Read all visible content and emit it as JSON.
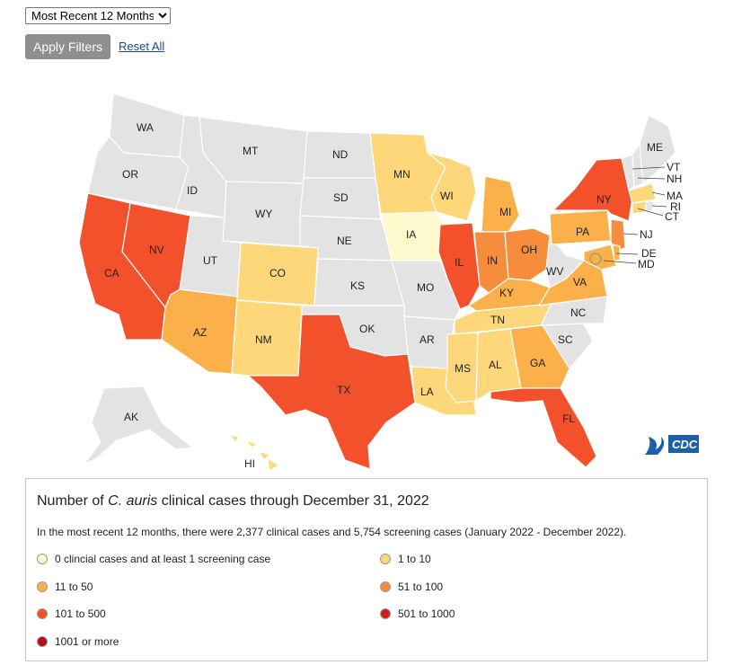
{
  "filters": {
    "period_selected": "Most Recent 12 Months",
    "apply_label": "Apply Filters",
    "reset_label": "Reset All"
  },
  "map": {
    "logo_text": "CDC",
    "colors": {
      "none": "#e3e3e3",
      "zero": "#fffacd",
      "1to10": "#fdd77a",
      "11to50": "#fbb04a",
      "51to100": "#f68c3c",
      "101to500": "#f2512c",
      "501to1000": "#d41c1c",
      "1001plus": "#b50d17"
    },
    "labels": {
      "WA": "WA",
      "OR": "OR",
      "CA": "CA",
      "NV": "NV",
      "ID": "ID",
      "MT": "MT",
      "WY": "WY",
      "UT": "UT",
      "AZ": "AZ",
      "CO": "CO",
      "NM": "NM",
      "ND": "ND",
      "SD": "SD",
      "NE": "NE",
      "KS": "KS",
      "OK": "OK",
      "TX": "TX",
      "MN": "MN",
      "IA": "IA",
      "MO": "MO",
      "AR": "AR",
      "LA": "LA",
      "WI": "WI",
      "IL": "IL",
      "MI": "MI",
      "IN": "IN",
      "OH": "OH",
      "KY": "KY",
      "TN": "TN",
      "MS": "MS",
      "AL": "AL",
      "GA": "GA",
      "FL": "FL",
      "SC": "SC",
      "NC": "NC",
      "VA": "VA",
      "WV": "WV",
      "PA": "PA",
      "NY": "NY",
      "ME": "ME",
      "VT": "VT",
      "NH": "NH",
      "MA": "MA",
      "RI": "RI",
      "CT": "CT",
      "NJ": "NJ",
      "DE": "DE",
      "MD": "MD",
      "AK": "AK",
      "HI": "HI"
    }
  },
  "legend": {
    "title_prefix": "Number of ",
    "title_italic": "C. auris",
    "title_suffix": " clinical cases through December 31, 2022",
    "note": "In the most recent 12 months, there were 2,377 clinical cases and 5,754 screening cases (January 2022 - December 2022).",
    "items": [
      {
        "label": "0 clincial cases and at least 1 screening case",
        "color": "#fffacd"
      },
      {
        "label": "1 to 10",
        "color": "#fdd77a"
      },
      {
        "label": "11 to 50",
        "color": "#fbb04a"
      },
      {
        "label": "51 to 100",
        "color": "#f68c3c"
      },
      {
        "label": "101 to 500",
        "color": "#f2512c"
      },
      {
        "label": "501 to 1000",
        "color": "#d41c1c"
      },
      {
        "label": "1001 or more",
        "color": "#b50d17"
      }
    ]
  }
}
